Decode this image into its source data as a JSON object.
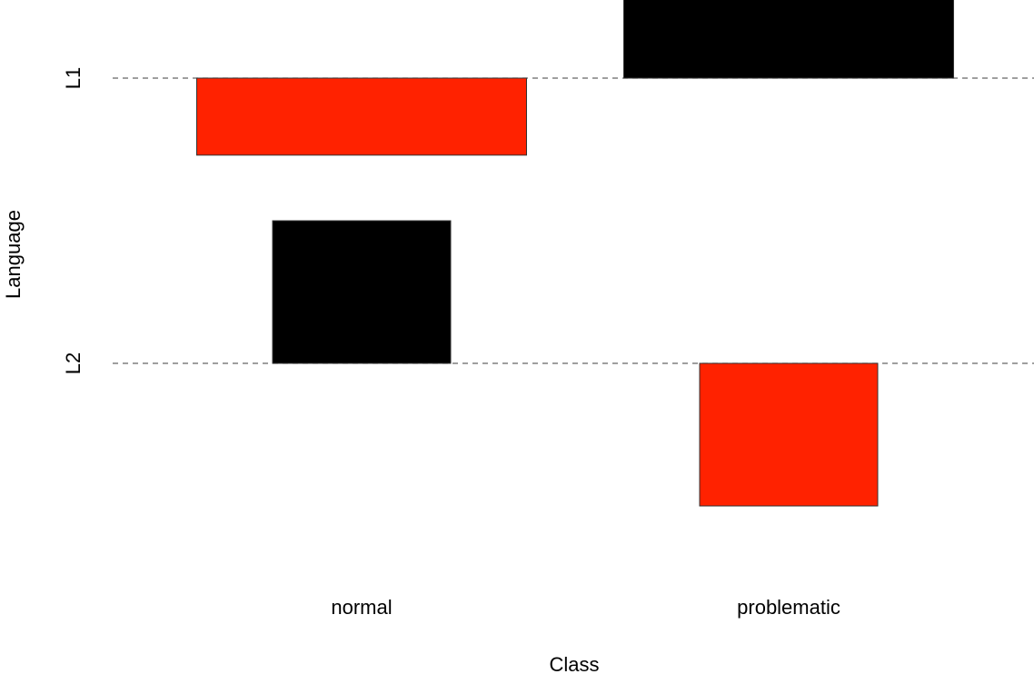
{
  "chart_data": {
    "type": "bar",
    "xlabel": "Class",
    "ylabel": "Language",
    "categories": [
      "normal",
      "problematic"
    ],
    "languages": [
      "L1",
      "L2"
    ],
    "ylim": [
      -1.5,
      0.55
    ],
    "grid": false,
    "legend": "none",
    "colors": {
      "black": "#000000",
      "red": "#ff2200"
    },
    "bars": [
      {
        "category": "normal",
        "language": "L1",
        "value": -0.27,
        "width": 1.0,
        "color": "red"
      },
      {
        "category": "normal",
        "language": "L2",
        "value": 0.5,
        "width": 0.54,
        "color": "black"
      },
      {
        "category": "problematic",
        "language": "L1",
        "value": 0.28,
        "width": 1.0,
        "color": "black"
      },
      {
        "category": "problematic",
        "language": "L2",
        "value": -0.5,
        "width": 0.54,
        "color": "red"
      }
    ]
  }
}
